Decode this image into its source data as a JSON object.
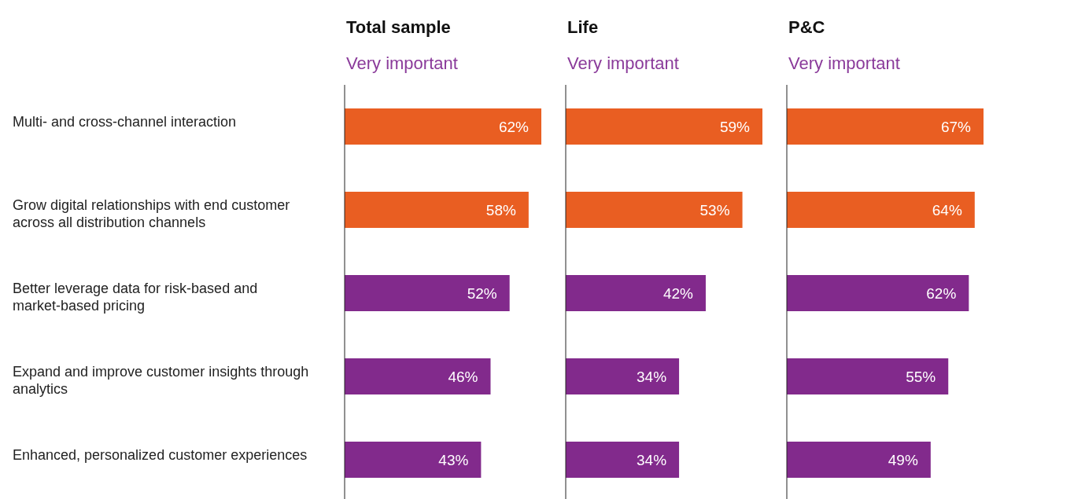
{
  "chart_data": [
    {
      "type": "bar",
      "orientation": "horizontal",
      "title": "Total sample",
      "subtitle": "Very important",
      "categories": [
        "Multi- and cross-channel interaction",
        "Grow digital relationships with end customer across all distribution channels",
        "Better leverage data for risk-based and market-based pricing",
        "Expand and improve customer insights through analytics",
        "Enhanced, personalized customer experiences"
      ],
      "values": [
        62,
        58,
        52,
        46,
        43
      ],
      "value_labels": [
        "62%",
        "58%",
        "52%",
        "46%",
        "43%"
      ],
      "colors": [
        "#e95e22",
        "#e95e22",
        "#822a8c",
        "#822a8c",
        "#822a8c"
      ],
      "tick_labels": "y"
    },
    {
      "type": "bar",
      "orientation": "horizontal",
      "title": "Life",
      "subtitle": "Very important",
      "values": [
        59,
        53,
        42,
        34,
        34
      ],
      "value_labels": [
        "59%",
        "53%",
        "42%",
        "34%",
        "34%"
      ],
      "colors": [
        "#e95e22",
        "#e95e22",
        "#822a8c",
        "#822a8c",
        "#822a8c"
      ],
      "tick_labels": false
    },
    {
      "type": "bar",
      "orientation": "horizontal",
      "title": "P&C",
      "subtitle": "Very important",
      "values": [
        67,
        64,
        62,
        55,
        49
      ],
      "value_labels": [
        "67%",
        "64%",
        "62%",
        "55%",
        "49%"
      ],
      "colors": [
        "#e95e22",
        "#e95e22",
        "#822a8c",
        "#822a8c",
        "#822a8c"
      ],
      "tick_labels": false
    }
  ]
}
